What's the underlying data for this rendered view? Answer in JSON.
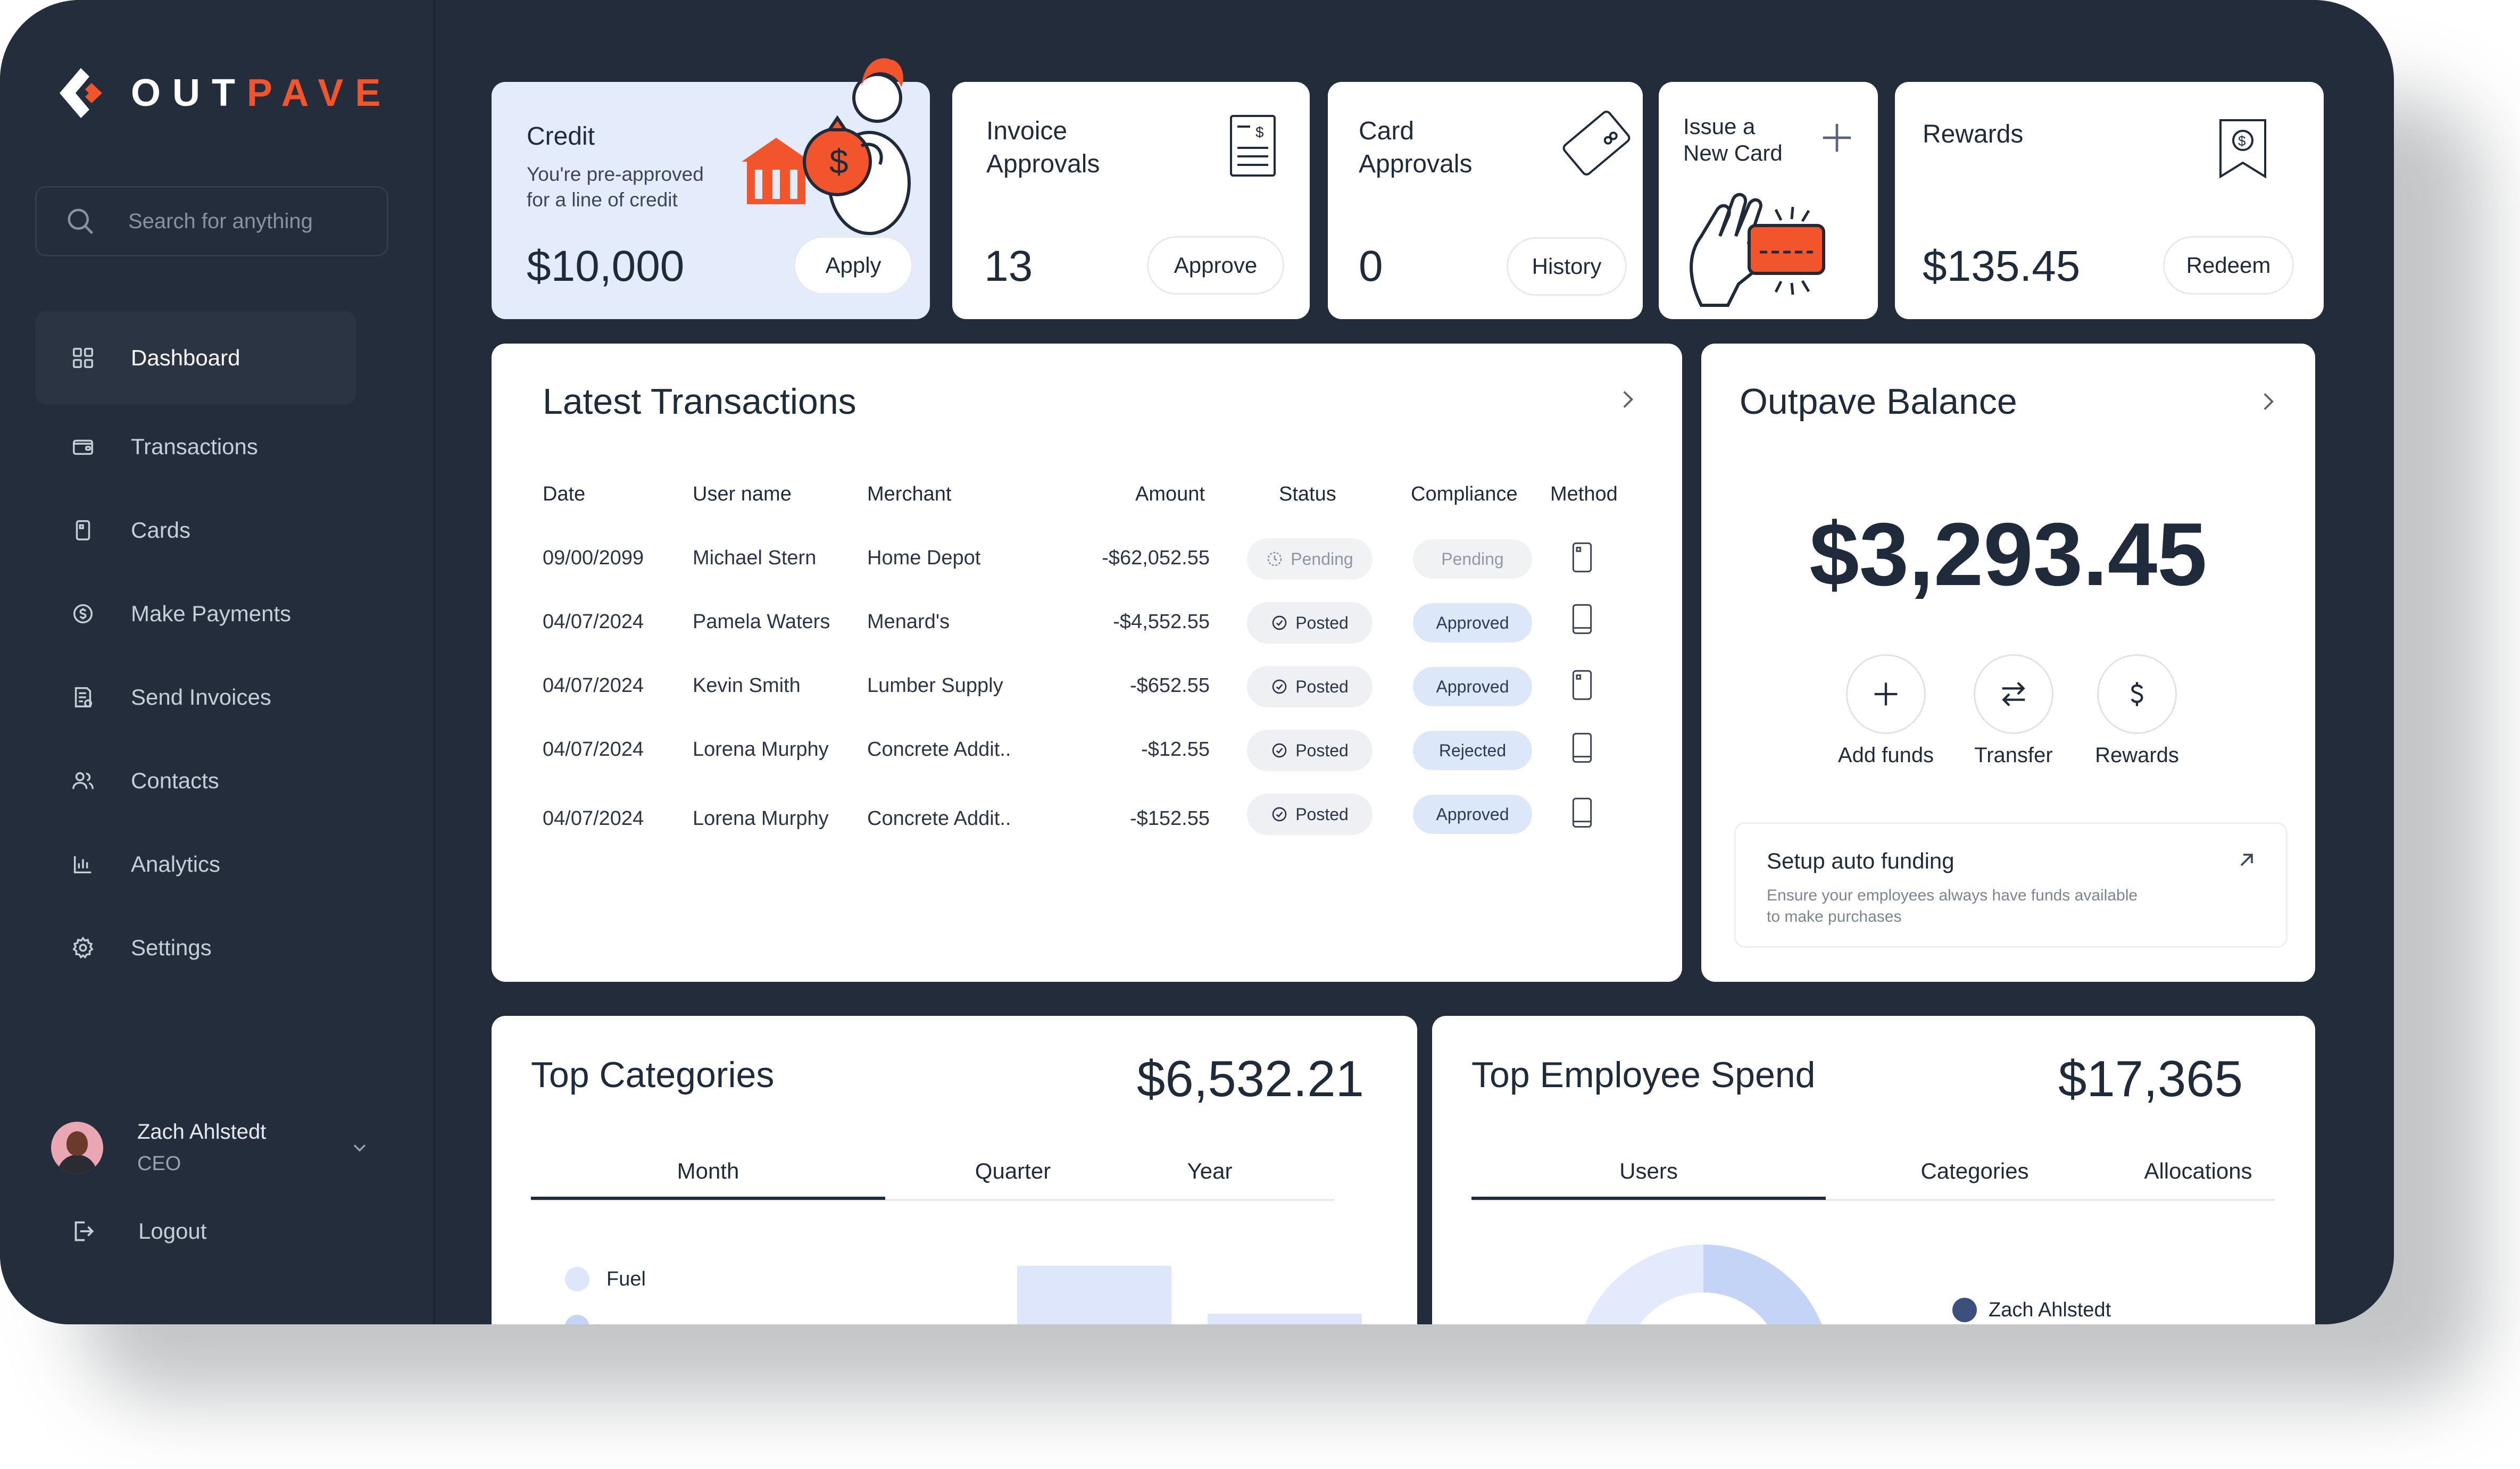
{
  "brand": {
    "name_part1": "OUT",
    "name_part2": "PAVE",
    "accent_color": "#f2552c"
  },
  "search": {
    "placeholder": "Search for anything"
  },
  "sidebar": {
    "items": [
      {
        "label": "Dashboard",
        "icon": "grid-icon",
        "active": true
      },
      {
        "label": "Transactions",
        "icon": "wallet-icon"
      },
      {
        "label": "Cards",
        "icon": "card-icon"
      },
      {
        "label": "Make Payments",
        "icon": "coin-icon"
      },
      {
        "label": "Send Invoices",
        "icon": "invoice-icon"
      },
      {
        "label": "Contacts",
        "icon": "users-icon"
      },
      {
        "label": "Analytics",
        "icon": "bar-chart-icon"
      },
      {
        "label": "Settings",
        "icon": "gear-icon"
      }
    ],
    "profile": {
      "name": "Zach Ahlstedt",
      "role": "CEO"
    },
    "logout_label": "Logout"
  },
  "cards": {
    "credit": {
      "title": "Credit",
      "subtitle_line1": "You're pre-approved",
      "subtitle_line2": "for a line of credit",
      "value": "$10,000",
      "button": "Apply"
    },
    "invoice": {
      "title_line1": "Invoice",
      "title_line2": "Approvals",
      "value": "13",
      "button": "Approve"
    },
    "card_approvals": {
      "title_line1": "Card",
      "title_line2": "Approvals",
      "value": "0",
      "button": "History"
    },
    "issue": {
      "title_line1": "Issue a",
      "title_line2": "New Card"
    },
    "rewards": {
      "title": "Rewards",
      "value": "$135.45",
      "button": "Redeem"
    }
  },
  "transactions": {
    "title": "Latest Transactions",
    "columns": [
      "Date",
      "User name",
      "Merchant",
      "Amount",
      "Status",
      "Compliance",
      "Method"
    ],
    "rows": [
      {
        "date": "09/00/2099",
        "user": "Michael Stern",
        "merchant": "Home Depot",
        "amount": "-$62,052.55",
        "status": "Pending",
        "compliance": "Pending"
      },
      {
        "date": "04/07/2024",
        "user": "Pamela Waters",
        "merchant": "Menard's",
        "amount": "-$4,552.55",
        "status": "Posted",
        "compliance": "Approved"
      },
      {
        "date": "04/07/2024",
        "user": "Kevin Smith",
        "merchant": "Lumber Supply",
        "amount": "-$652.55",
        "status": "Posted",
        "compliance": "Approved"
      },
      {
        "date": "04/07/2024",
        "user": "Lorena Murphy",
        "merchant": "Concrete Addit..",
        "amount": "-$12.55",
        "status": "Posted",
        "compliance": "Rejected"
      },
      {
        "date": "04/07/2024",
        "user": "Lorena Murphy",
        "merchant": "Concrete Addit..",
        "amount": "-$152.55",
        "status": "Posted",
        "compliance": "Approved"
      }
    ]
  },
  "balance": {
    "title": "Outpave Balance",
    "value": "$3,293.45",
    "actions": [
      "Add funds",
      "Transfer",
      "Rewards"
    ],
    "setup_title": "Setup auto funding",
    "setup_line1": "Ensure your employees always have funds available",
    "setup_line2": "to make purchases"
  },
  "categories": {
    "title": "Top Categories",
    "total": "$6,532.21",
    "tabs": [
      "Month",
      "Quarter",
      "Year"
    ],
    "legend": [
      "Fuel"
    ]
  },
  "employee_spend": {
    "title": "Top Employee Spend",
    "total": "$17,365",
    "tabs": [
      "Users",
      "Categories",
      "Allocations"
    ],
    "legend": [
      "Zach Ahlstedt"
    ]
  }
}
